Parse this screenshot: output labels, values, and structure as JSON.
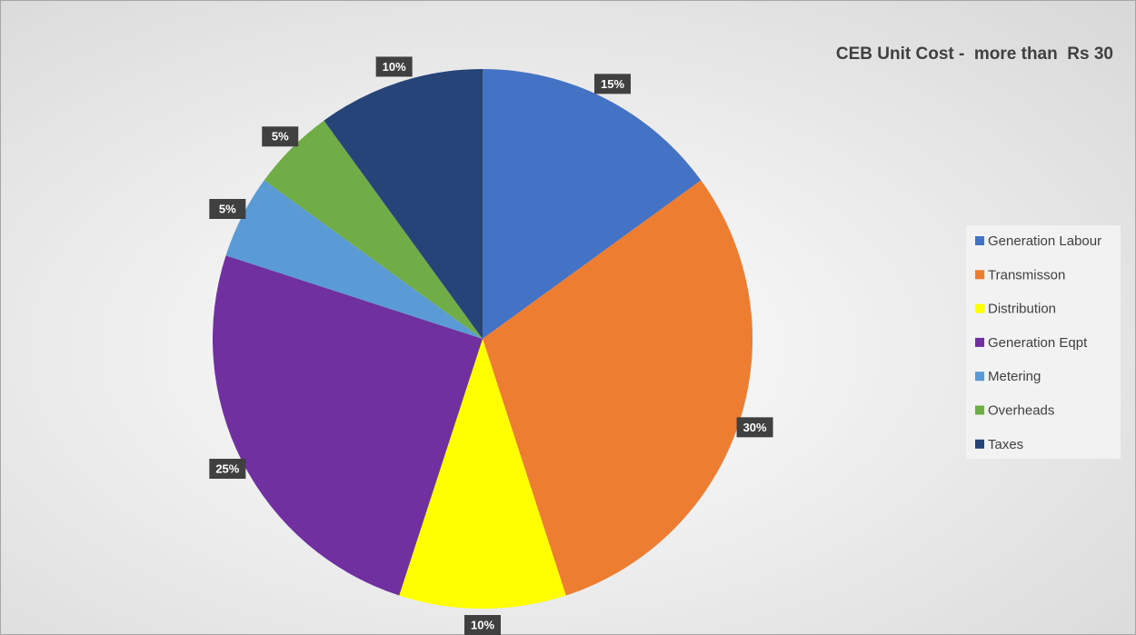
{
  "chart_data": {
    "type": "pie",
    "title": "CEB Unit Cost -  more than  Rs 30",
    "categories": [
      "Generation Labour",
      "Transmisson",
      "Distribution",
      "Generation Eqpt",
      "Metering",
      "Overheads",
      "Taxes"
    ],
    "values": [
      15,
      30,
      10,
      25,
      5,
      5,
      10
    ],
    "value_labels": [
      "15%",
      "30%",
      "10%",
      "25%",
      "5%",
      "5%",
      "10%"
    ],
    "colors": [
      "#4472c4",
      "#ed7d31",
      "#ffff00",
      "#7030a0",
      "#5b9bd5",
      "#70ad47",
      "#264478"
    ],
    "legend": "right"
  }
}
